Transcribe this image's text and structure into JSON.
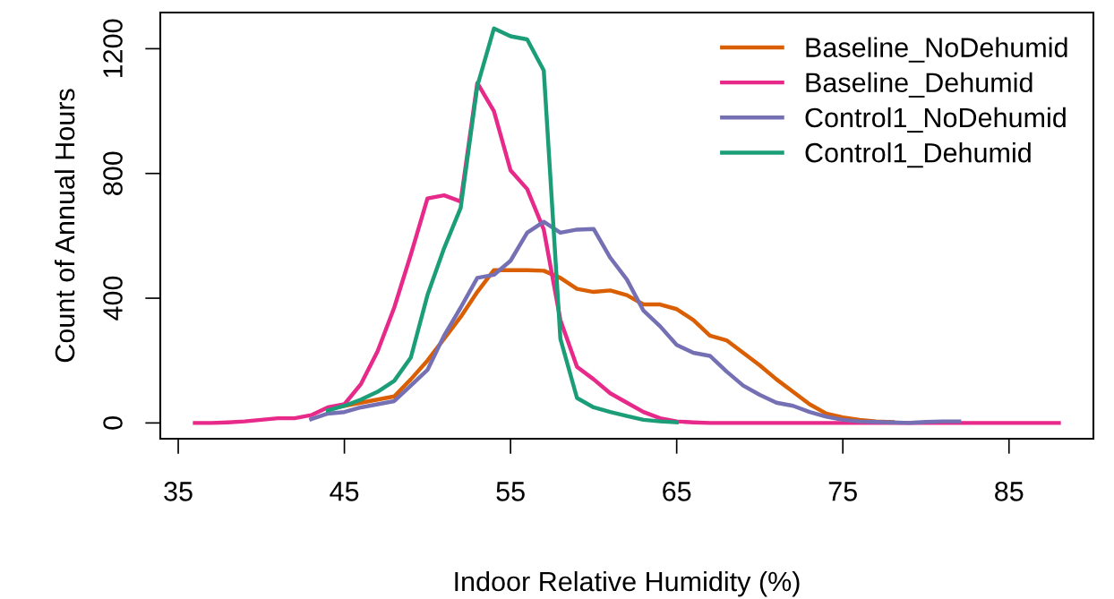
{
  "chart_data": {
    "type": "line",
    "xlabel": "Indoor Relative Humidity (%)",
    "ylabel": "Count of Annual Hours",
    "x": [
      36,
      37,
      38,
      39,
      40,
      41,
      42,
      43,
      44,
      45,
      46,
      47,
      48,
      49,
      50,
      51,
      52,
      53,
      54,
      55,
      56,
      57,
      58,
      59,
      60,
      61,
      62,
      63,
      64,
      65,
      66,
      67,
      68,
      69,
      70,
      71,
      72,
      73,
      74,
      75,
      76,
      77,
      78,
      79,
      80,
      81,
      82,
      83,
      84,
      85,
      86,
      87,
      88
    ],
    "series": [
      {
        "name": "Baseline_NoDehumid",
        "color": "#d95f02",
        "values": [
          null,
          null,
          null,
          null,
          null,
          null,
          null,
          null,
          45,
          55,
          65,
          75,
          85,
          140,
          200,
          270,
          340,
          420,
          490,
          490,
          490,
          488,
          465,
          430,
          420,
          425,
          410,
          380,
          380,
          365,
          330,
          280,
          265,
          225,
          185,
          140,
          100,
          60,
          30,
          18,
          10,
          5,
          3,
          null,
          null,
          null,
          null,
          null,
          null,
          null,
          null,
          null,
          null
        ]
      },
      {
        "name": "Baseline_Dehumid",
        "color": "#e7298a",
        "values": [
          0,
          0,
          2,
          5,
          10,
          15,
          15,
          25,
          50,
          60,
          125,
          230,
          370,
          540,
          720,
          730,
          710,
          1090,
          1000,
          810,
          750,
          620,
          330,
          180,
          140,
          95,
          65,
          35,
          15,
          5,
          2,
          0,
          0,
          0,
          0,
          0,
          0,
          0,
          0,
          0,
          0,
          0,
          0,
          0,
          0,
          0,
          0,
          0,
          0,
          0,
          0,
          0,
          0
        ]
      },
      {
        "name": "Control1_NoDehumid",
        "color": "#7570b3",
        "values": [
          null,
          null,
          null,
          null,
          null,
          null,
          null,
          12,
          30,
          35,
          50,
          60,
          70,
          120,
          170,
          280,
          370,
          465,
          475,
          520,
          610,
          645,
          610,
          620,
          622,
          530,
          460,
          360,
          310,
          250,
          225,
          215,
          165,
          120,
          90,
          65,
          55,
          35,
          20,
          10,
          5,
          3,
          2,
          0,
          3,
          5,
          5,
          null,
          null,
          null,
          null,
          null,
          null
        ]
      },
      {
        "name": "Control1_Dehumid",
        "color": "#1b9e77",
        "values": [
          null,
          null,
          null,
          null,
          null,
          null,
          null,
          null,
          40,
          55,
          75,
          100,
          135,
          210,
          410,
          560,
          690,
          1080,
          1265,
          1240,
          1230,
          1130,
          270,
          80,
          50,
          35,
          22,
          10,
          5,
          2,
          null,
          null,
          null,
          null,
          null,
          null,
          null,
          null,
          null,
          null,
          null,
          null,
          null,
          null,
          null,
          null,
          null,
          null,
          null,
          null,
          null,
          null,
          null
        ]
      }
    ],
    "xlim": [
      33.92,
      90.08
    ],
    "ylim": [
      -50.6,
      1316
    ],
    "xticks": [
      35,
      45,
      55,
      65,
      75,
      85
    ],
    "yticks": [
      0,
      400,
      800,
      1200
    ],
    "legend": "top right",
    "grid": false,
    "marker": "none",
    "line_style": "solid"
  }
}
